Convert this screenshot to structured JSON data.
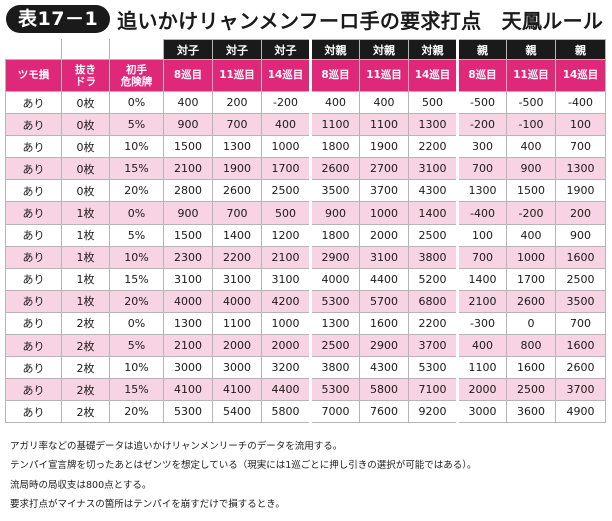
{
  "title": {
    "badge": "表17－1",
    "text": "追いかけリャンメンフーロ手の要求打点　天鳳ルール"
  },
  "table": {
    "group_headers": [
      "対子",
      "対子",
      "対子",
      "対親",
      "対親",
      "対親",
      "親",
      "親",
      "親"
    ],
    "col_headers": [
      "ツモ損",
      "抜き\nドラ",
      "初手\n危険牌",
      "8巡目",
      "11巡目",
      "14巡目",
      "8巡目",
      "11巡目",
      "14巡目",
      "8巡目",
      "11巡目",
      "14巡目"
    ],
    "rows": [
      [
        "あり",
        "0枚",
        "0%",
        "400",
        "200",
        "-200",
        "400",
        "400",
        "500",
        "-500",
        "-500",
        "-400"
      ],
      [
        "あり",
        "0枚",
        "5%",
        "900",
        "700",
        "400",
        "1100",
        "1100",
        "1300",
        "-200",
        "-100",
        "100"
      ],
      [
        "あり",
        "0枚",
        "10%",
        "1500",
        "1300",
        "1000",
        "1800",
        "1900",
        "2200",
        "300",
        "400",
        "700"
      ],
      [
        "あり",
        "0枚",
        "15%",
        "2100",
        "1900",
        "1700",
        "2600",
        "2700",
        "3100",
        "700",
        "900",
        "1300"
      ],
      [
        "あり",
        "0枚",
        "20%",
        "2800",
        "2600",
        "2500",
        "3500",
        "3700",
        "4300",
        "1300",
        "1500",
        "1900"
      ],
      [
        "あり",
        "1枚",
        "0%",
        "900",
        "700",
        "500",
        "900",
        "1000",
        "1400",
        "-400",
        "-200",
        "200"
      ],
      [
        "あり",
        "1枚",
        "5%",
        "1500",
        "1400",
        "1200",
        "1800",
        "2000",
        "2500",
        "100",
        "400",
        "900"
      ],
      [
        "あり",
        "1枚",
        "10%",
        "2300",
        "2200",
        "2100",
        "2900",
        "3100",
        "3800",
        "700",
        "1000",
        "1600"
      ],
      [
        "あり",
        "1枚",
        "15%",
        "3100",
        "3100",
        "3100",
        "4000",
        "4400",
        "5200",
        "1400",
        "1700",
        "2500"
      ],
      [
        "あり",
        "1枚",
        "20%",
        "4000",
        "4000",
        "4200",
        "5300",
        "5700",
        "6800",
        "2100",
        "2600",
        "3500"
      ],
      [
        "あり",
        "2枚",
        "0%",
        "1300",
        "1100",
        "1000",
        "1300",
        "1600",
        "2200",
        "-300",
        "0",
        "700"
      ],
      [
        "あり",
        "2枚",
        "5%",
        "2100",
        "2000",
        "2000",
        "2500",
        "2900",
        "3700",
        "400",
        "800",
        "1600"
      ],
      [
        "あり",
        "2枚",
        "10%",
        "3000",
        "3000",
        "3200",
        "3800",
        "4300",
        "5300",
        "1100",
        "1600",
        "2600"
      ],
      [
        "あり",
        "2枚",
        "15%",
        "4100",
        "4100",
        "4400",
        "5300",
        "5800",
        "7100",
        "2000",
        "2500",
        "3700"
      ],
      [
        "あり",
        "2枚",
        "20%",
        "5300",
        "5400",
        "5800",
        "7000",
        "7600",
        "9200",
        "3000",
        "3600",
        "4900"
      ]
    ]
  },
  "notes": [
    "アガリ率などの基礎データは追いかけリャンメンリーチのデータを流用する。",
    "テンパイ宣言牌を切ったあとはゼンツを想定している（現実には1巡ごとに押し引きの選択が可能ではある）。",
    "流局時の局収支は800点とする。",
    "要求打点がマイナスの箇所はテンパイを崩すだけで損するとき。"
  ],
  "colors": {
    "header_black": "#1a1a1a",
    "header_pink": "#e0287a",
    "row_pink": "#f7d3e4"
  }
}
